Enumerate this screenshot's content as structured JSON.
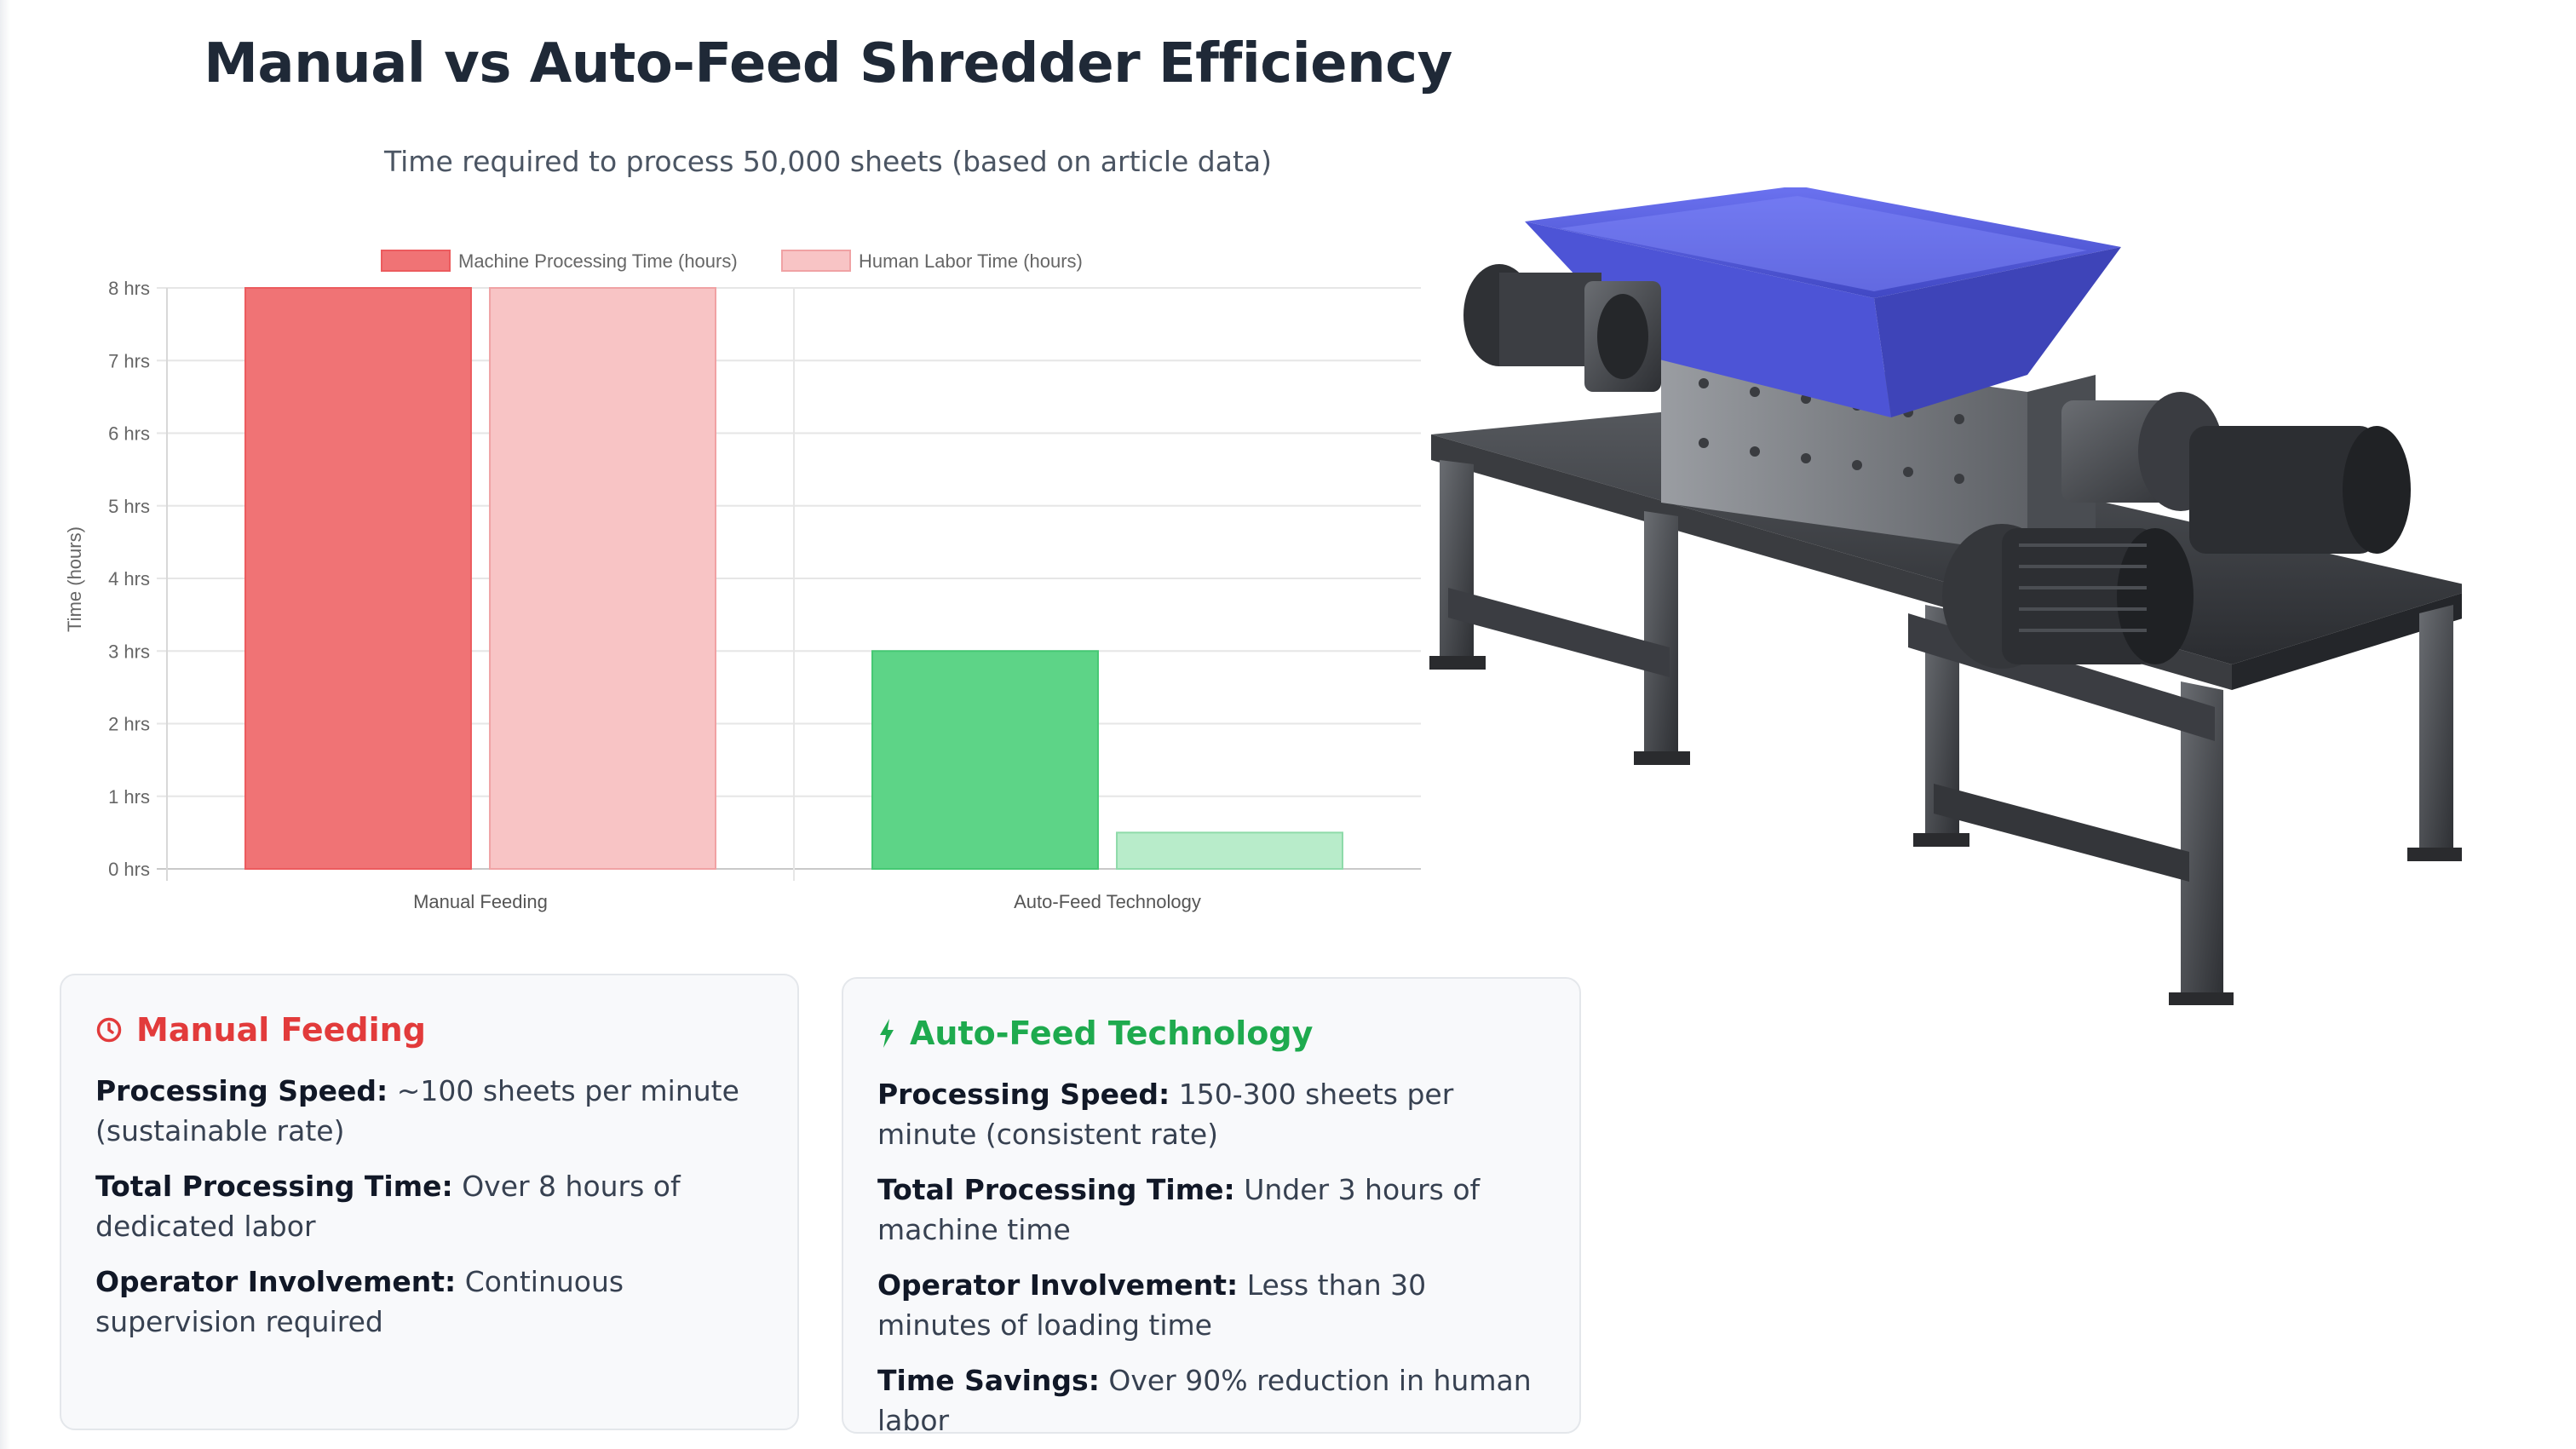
{
  "chart_data": {
    "type": "bar",
    "title": "Manual vs Auto-Feed Shredder Efficiency",
    "subtitle": "Time required to process 50,000 sheets (based on article data)",
    "categories": [
      "Manual Feeding",
      "Auto-Feed Technology"
    ],
    "series": [
      {
        "name": "Machine Processing Time (hours)",
        "values": [
          8,
          3
        ]
      },
      {
        "name": "Human Labor Time (hours)",
        "values": [
          8,
          0.5
        ]
      }
    ],
    "ylabel": "Time (hours)",
    "xlabel": "",
    "ylim": [
      0,
      8
    ],
    "yticks": [
      "0 hrs",
      "1 hrs",
      "2 hrs",
      "3 hrs",
      "4 hrs",
      "5 hrs",
      "6 hrs",
      "7 hrs",
      "8 hrs"
    ],
    "legend_position": "top-center",
    "grid": true,
    "colors": {
      "manual_machine": "#f07375",
      "manual_labor": "#f8c4c5",
      "auto_machine": "#5dd487",
      "auto_labor": "#b8ecca"
    }
  },
  "cards": {
    "manual": {
      "icon": "clock-icon",
      "title": "Manual Feeding",
      "rows": [
        {
          "label": "Processing Speed:",
          "value": " ~100 sheets per minute (sustainable rate)"
        },
        {
          "label": "Total Processing Time:",
          "value": " Over 8 hours of dedicated labor"
        },
        {
          "label": "Operator Involvement:",
          "value": " Continuous supervision required"
        }
      ]
    },
    "auto": {
      "icon": "lightning-icon",
      "title": "Auto-Feed Technology",
      "rows": [
        {
          "label": "Processing Speed:",
          "value": " 150-300 sheets per minute (consistent rate)"
        },
        {
          "label": "Total Processing Time:",
          "value": " Under 3 hours of machine time"
        },
        {
          "label": "Operator Involvement:",
          "value": " Less than 30 minutes of loading time"
        },
        {
          "label": "Time Savings:",
          "value": " Over 90% reduction in human labor"
        }
      ]
    }
  },
  "image": {
    "subject": "industrial-shredder-machine",
    "hopper_color": "#5c63e0"
  }
}
